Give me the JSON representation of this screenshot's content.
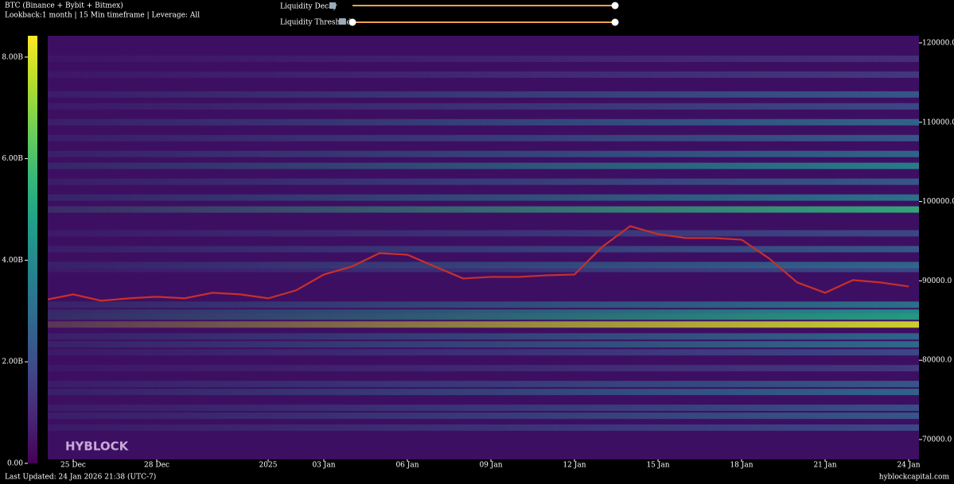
{
  "header": {
    "title": "BTC (Binance + Bybit + Bitmex)",
    "subtitle": "Lookback:1 month | 15 Min timeframe | Leverage: All"
  },
  "controls": {
    "decay_label": "Liquidity Decay",
    "threshold_label": "Liquidity Threshold"
  },
  "watermark": "HYBLOCK",
  "footer": {
    "updated": "Last Updated: 24 Jan 2026 21:38 (UTC-7)",
    "site": "hyblockcapital.com"
  },
  "chart_data": {
    "type": "heatmap",
    "categories": [
      null,
      "25 Dec",
      null,
      null,
      "28 Dec",
      null,
      null,
      null,
      "2025",
      null,
      "03 Jan",
      null,
      null,
      "06 Jan",
      null,
      null,
      "09 Jan",
      null,
      null,
      "12 Jan",
      null,
      null,
      "15 Jan",
      null,
      null,
      "18 Jan",
      null,
      null,
      "21 Jan",
      null,
      null,
      "24 Jan"
    ],
    "series": [
      {
        "name": "BTC",
        "color": "#c8302a",
        "values": [
          87600,
          88300,
          87500,
          87800,
          88000,
          87800,
          88500,
          88300,
          87800,
          88800,
          90800,
          91800,
          93500,
          93300,
          91800,
          90300,
          90500,
          90500,
          90700,
          90800,
          94300,
          96900,
          95900,
          95400,
          95400,
          95200,
          92800,
          89800,
          88500,
          90100,
          89800,
          89300
        ]
      }
    ],
    "levels": [
      71500,
      73000,
      74000,
      76000,
      77000,
      79000,
      81000,
      82000,
      83000,
      84500,
      85500,
      86000,
      87000,
      91500,
      92000,
      94000,
      96000,
      99000,
      100500,
      102500,
      104500,
      106000,
      108000,
      110000,
      112000,
      113500,
      116000,
      118000
    ],
    "intensity": [
      2.0,
      2.5,
      2.2,
      3.0,
      2.5,
      1.5,
      2.0,
      3.2,
      3.0,
      8.0,
      5.0,
      4.5,
      3.5,
      2.0,
      3.0,
      2.5,
      2.0,
      5.5,
      3.5,
      2.5,
      4.0,
      3.0,
      2.5,
      3.0,
      2.0,
      2.5,
      1.5,
      1.2
    ],
    "ylim": [
      67500,
      120900
    ],
    "yticks": [
      {
        "value": 70000,
        "label": "70000.0"
      },
      {
        "value": 80000,
        "label": "80000.0"
      },
      {
        "value": 90000,
        "label": "90000.0"
      },
      {
        "value": 100000,
        "label": "100000.0"
      },
      {
        "value": 110000,
        "label": "110000.0"
      },
      {
        "value": 120000,
        "label": "120000.0"
      }
    ],
    "clim": [
      0,
      8.42
    ],
    "cticks": [
      {
        "value": 0,
        "label": "0.00"
      },
      {
        "value": 2,
        "label": "2.00B"
      },
      {
        "value": 4,
        "label": "4.00B"
      },
      {
        "value": 6,
        "label": "6.00B"
      },
      {
        "value": 8,
        "label": "8.00B"
      }
    ]
  }
}
